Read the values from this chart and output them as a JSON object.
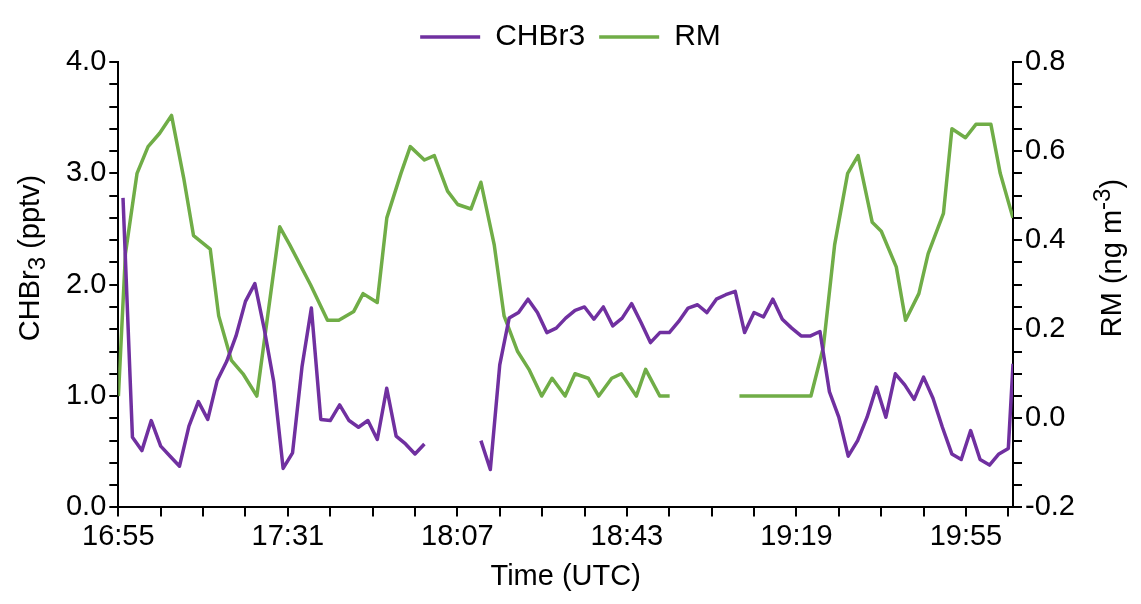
{
  "chart_data": {
    "type": "line",
    "xlabel": "Time (UTC)",
    "ylabel": "CHBr$_{3}$  (pptv)",
    "y2label": "RM (ng m$^{-3}$)",
    "legend": "top",
    "grid": false,
    "xlim": [
      16.9167,
      20.0833
    ],
    "xticks": [
      {
        "value": 16.9167,
        "label": "16:55"
      },
      {
        "value": 17.0667,
        "label": null
      },
      {
        "value": 17.2167,
        "label": null
      },
      {
        "value": 17.3667,
        "label": null
      },
      {
        "value": 17.5167,
        "label": "17:31"
      },
      {
        "value": 17.6667,
        "label": null
      },
      {
        "value": 17.8167,
        "label": null
      },
      {
        "value": 17.9667,
        "label": null
      },
      {
        "value": 18.1167,
        "label": "18:07"
      },
      {
        "value": 18.2667,
        "label": null
      },
      {
        "value": 18.4167,
        "label": null
      },
      {
        "value": 18.5667,
        "label": null
      },
      {
        "value": 18.7167,
        "label": "18:43"
      },
      {
        "value": 18.8667,
        "label": null
      },
      {
        "value": 19.0167,
        "label": null
      },
      {
        "value": 19.1667,
        "label": null
      },
      {
        "value": 19.3167,
        "label": "19:19"
      },
      {
        "value": 19.4667,
        "label": null
      },
      {
        "value": 19.6167,
        "label": null
      },
      {
        "value": 19.7667,
        "label": null
      },
      {
        "value": 19.9167,
        "label": "19:55"
      },
      {
        "value": 20.0667,
        "label": null
      }
    ],
    "ylim": [
      0,
      4
    ],
    "yticks": [
      {
        "value": 0,
        "label": "0.0"
      },
      {
        "value": 0.2,
        "label": null
      },
      {
        "value": 0.4,
        "label": null
      },
      {
        "value": 0.6,
        "label": null
      },
      {
        "value": 0.8,
        "label": null
      },
      {
        "value": 1,
        "label": "1.0"
      },
      {
        "value": 1.2,
        "label": null
      },
      {
        "value": 1.4,
        "label": null
      },
      {
        "value": 1.6,
        "label": null
      },
      {
        "value": 1.8,
        "label": null
      },
      {
        "value": 2,
        "label": "2.0"
      },
      {
        "value": 2.2,
        "label": null
      },
      {
        "value": 2.4,
        "label": null
      },
      {
        "value": 2.6,
        "label": null
      },
      {
        "value": 2.8,
        "label": null
      },
      {
        "value": 3,
        "label": "3.0"
      },
      {
        "value": 3.2,
        "label": null
      },
      {
        "value": 3.4,
        "label": null
      },
      {
        "value": 3.6,
        "label": null
      },
      {
        "value": 3.8,
        "label": null
      },
      {
        "value": 4,
        "label": "4.0"
      }
    ],
    "y2lim": [
      -0.2,
      0.8
    ],
    "y2ticks": [
      {
        "value": -0.2,
        "label": "-0.2"
      },
      {
        "value": -0.15,
        "label": null
      },
      {
        "value": -0.1,
        "label": null
      },
      {
        "value": -0.05,
        "label": null
      },
      {
        "value": 0,
        "label": "0.0"
      },
      {
        "value": 0.05,
        "label": null
      },
      {
        "value": 0.1,
        "label": null
      },
      {
        "value": 0.15,
        "label": null
      },
      {
        "value": 0.2,
        "label": "0.2"
      },
      {
        "value": 0.25,
        "label": null
      },
      {
        "value": 0.3,
        "label": null
      },
      {
        "value": 0.35,
        "label": null
      },
      {
        "value": 0.4,
        "label": "0.4"
      },
      {
        "value": 0.45,
        "label": null
      },
      {
        "value": 0.5,
        "label": null
      },
      {
        "value": 0.55,
        "label": null
      },
      {
        "value": 0.6,
        "label": "0.6"
      },
      {
        "value": 0.65,
        "label": null
      },
      {
        "value": 0.7,
        "label": null
      },
      {
        "value": 0.75,
        "label": null
      },
      {
        "value": 0.8,
        "label": "0.8"
      }
    ],
    "series": [
      {
        "name": "CHBr3",
        "color": "#7030a0",
        "axis": "y",
        "x": [
          16.9333,
          16.9667,
          17.0,
          17.0333,
          17.0667,
          17.1,
          17.1333,
          17.1667,
          17.2,
          17.2333,
          17.2667,
          17.3,
          17.3333,
          17.3667,
          17.4,
          17.4333,
          17.4667,
          17.5,
          17.5333,
          17.5667,
          17.6,
          17.6333,
          17.6667,
          17.7,
          17.7333,
          17.7667,
          17.8,
          17.8333,
          17.8667,
          17.9,
          17.9333,
          17.9667,
          18.0,
          18.1,
          18.2,
          18.2333,
          18.2667,
          18.3,
          18.3333,
          18.3667,
          18.4,
          18.4333,
          18.4667,
          18.5,
          18.5333,
          18.5667,
          18.6,
          18.6333,
          18.6667,
          18.7,
          18.7333,
          18.7667,
          18.8,
          18.8333,
          18.8667,
          18.9,
          18.9333,
          18.9667,
          19.0,
          19.0333,
          19.0667,
          19.1,
          19.1333,
          19.1667,
          19.2,
          19.2333,
          19.2667,
          19.3,
          19.3333,
          19.3667,
          19.4,
          19.4333,
          19.4667,
          19.5,
          19.5333,
          19.5667,
          19.6,
          19.6333,
          19.6667,
          19.7,
          19.7333,
          19.7667,
          19.8,
          19.8333,
          19.8667,
          19.9,
          19.9333,
          19.9667,
          20.0,
          20.0333,
          20.0667,
          20.0833
        ],
        "values": [
          2.78,
          0.63,
          0.51,
          0.78,
          0.55,
          0.46,
          0.37,
          0.73,
          0.95,
          0.79,
          1.14,
          1.31,
          1.54,
          1.85,
          2.01,
          1.6,
          1.13,
          0.35,
          0.49,
          1.26,
          1.79,
          0.79,
          0.78,
          0.92,
          0.78,
          0.72,
          0.78,
          0.61,
          1.07,
          0.64,
          0.57,
          0.48,
          0.57,
          null,
          0.6,
          0.34,
          1.28,
          1.7,
          1.75,
          1.87,
          1.75,
          1.57,
          1.61,
          1.7,
          1.77,
          1.8,
          1.69,
          1.8,
          1.63,
          1.7,
          1.83,
          1.66,
          1.48,
          1.57,
          1.57,
          1.67,
          1.79,
          1.82,
          1.75,
          1.87,
          1.91,
          1.94,
          1.57,
          1.75,
          1.71,
          1.87,
          1.69,
          1.61,
          1.54,
          1.54,
          1.58,
          1.04,
          0.81,
          0.46,
          0.6,
          0.81,
          1.08,
          0.81,
          1.2,
          1.1,
          0.97,
          1.17,
          0.98,
          0.72,
          0.48,
          0.43,
          0.69,
          0.43,
          0.38,
          0.48,
          0.53,
          1.29
        ]
      },
      {
        "name": "RM",
        "color": "#70ad47",
        "axis": "y2",
        "x": [
          16.917,
          16.942,
          16.983,
          17.022,
          17.063,
          17.105,
          17.148,
          17.183,
          17.242,
          17.272,
          17.317,
          17.358,
          17.407,
          17.488,
          17.523,
          17.597,
          17.657,
          17.697,
          17.75,
          17.783,
          17.833,
          17.867,
          17.917,
          17.95,
          18.0,
          18.035,
          18.082,
          18.118,
          18.165,
          18.2,
          18.247,
          18.282,
          18.33,
          18.37,
          18.415,
          18.452,
          18.498,
          18.533,
          18.58,
          18.617,
          18.663,
          18.697,
          18.75,
          18.783,
          18.833,
          18.868,
          19.0,
          19.115,
          19.368,
          19.412,
          19.452,
          19.498,
          19.535,
          19.585,
          19.617,
          19.67,
          19.703,
          19.75,
          19.783,
          19.837,
          19.867,
          19.915,
          19.952,
          20.005,
          20.038,
          20.083
        ],
        "values": [
          0.05,
          0.37,
          0.55,
          0.61,
          0.64,
          0.68,
          0.54,
          0.41,
          0.38,
          0.23,
          0.13,
          0.1,
          0.05,
          0.43,
          0.39,
          0.3,
          0.22,
          0.22,
          0.24,
          0.28,
          0.26,
          0.45,
          0.55,
          0.61,
          0.58,
          0.59,
          0.51,
          0.48,
          0.47,
          0.53,
          0.39,
          0.23,
          0.15,
          0.11,
          0.05,
          0.09,
          0.05,
          0.1,
          0.09,
          0.05,
          0.09,
          0.1,
          0.05,
          0.11,
          0.05,
          0.05,
          null,
          0.05,
          0.05,
          0.16,
          0.39,
          0.55,
          0.59,
          0.44,
          0.42,
          0.34,
          0.22,
          0.28,
          0.37,
          0.46,
          0.65,
          0.63,
          0.66,
          0.66,
          0.55,
          0.45
        ]
      }
    ]
  }
}
